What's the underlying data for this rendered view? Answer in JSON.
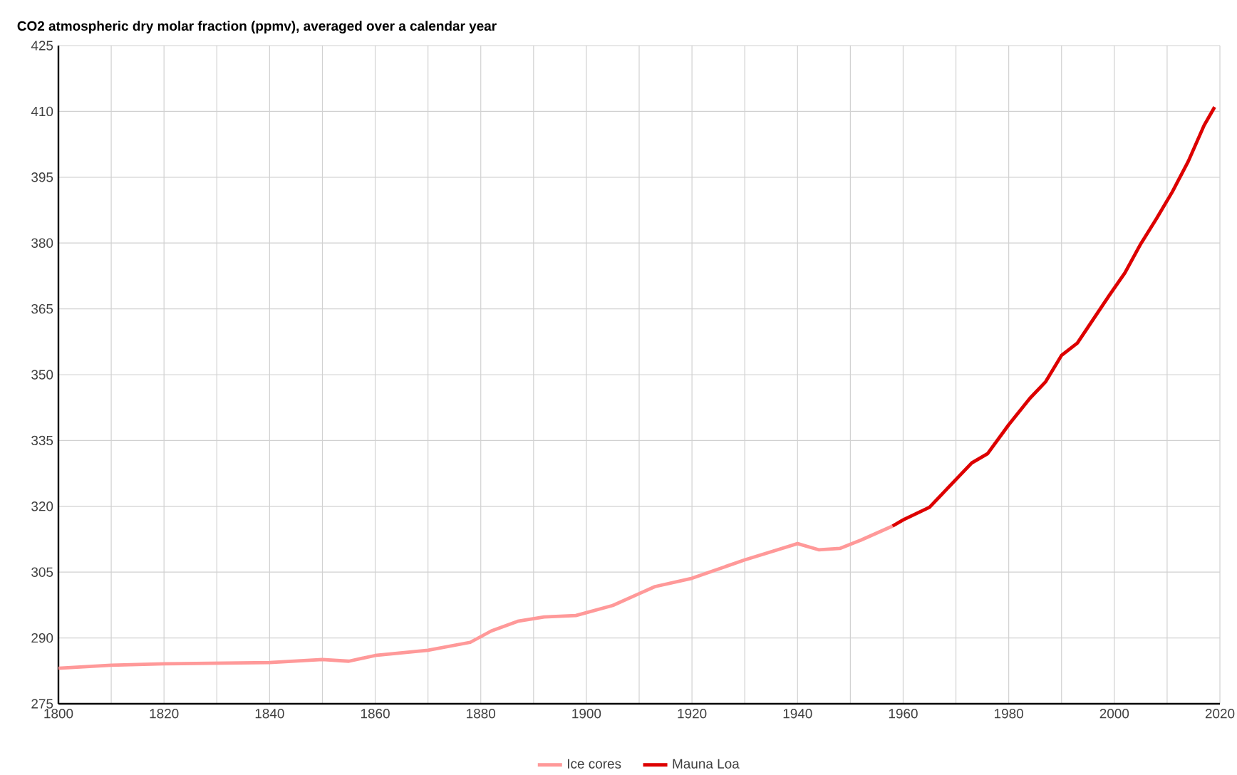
{
  "chart_data": {
    "type": "line",
    "title": "CO2 atmospheric dry molar fraction (ppmv), averaged over a calendar year",
    "series": [
      {
        "name": "Ice cores",
        "color": "#ff9999",
        "x": [
          1800,
          1810,
          1820,
          1840,
          1850,
          1855,
          1860,
          1870,
          1878,
          1882,
          1887,
          1892,
          1898,
          1905,
          1910,
          1913,
          1920,
          1930,
          1940,
          1944,
          1948,
          1952,
          1958
        ],
        "values": [
          283.1,
          283.8,
          284.1,
          284.4,
          285.1,
          284.7,
          286.0,
          287.2,
          289.0,
          291.6,
          293.8,
          294.8,
          295.1,
          297.4,
          300.1,
          301.7,
          303.6,
          307.8,
          311.5,
          310.1,
          310.4,
          312.3,
          315.5
        ]
      },
      {
        "name": "Mauna Loa",
        "color": "#dd0000",
        "x": [
          1958,
          1960,
          1965,
          1970,
          1973,
          1976,
          1980,
          1984,
          1987,
          1990,
          1993,
          1996,
          1999,
          2002,
          2005,
          2008,
          2011,
          2014,
          2017,
          2019
        ],
        "values": [
          315.5,
          316.9,
          319.8,
          326.1,
          329.9,
          332.0,
          338.6,
          344.6,
          348.4,
          354.4,
          357.2,
          362.6,
          368.0,
          373.2,
          379.8,
          385.6,
          391.7,
          398.6,
          406.8,
          411.0
        ]
      }
    ],
    "xlim": [
      1800,
      2020
    ],
    "xticks": [
      1800,
      {
        "value": 1810,
        "label": null
      },
      1820,
      {
        "value": 1830,
        "label": null
      },
      1840,
      {
        "value": 1850,
        "label": null
      },
      1860,
      {
        "value": 1870,
        "label": null
      },
      1880,
      {
        "value": 1890,
        "label": null
      },
      1900,
      {
        "value": 1910,
        "label": null
      },
      1920,
      {
        "value": 1930,
        "label": null
      },
      1940,
      {
        "value": 1950,
        "label": null
      },
      1960,
      {
        "value": 1970,
        "label": null
      },
      1980,
      {
        "value": 1990,
        "label": null
      },
      2000,
      {
        "value": 2010,
        "label": null
      },
      2020
    ],
    "ylim": [
      275,
      425
    ],
    "yticks": [
      275,
      290,
      305,
      320,
      335,
      350,
      365,
      380,
      395,
      410,
      425
    ],
    "grid": true,
    "legend": "bottom",
    "line_style": "solid"
  }
}
